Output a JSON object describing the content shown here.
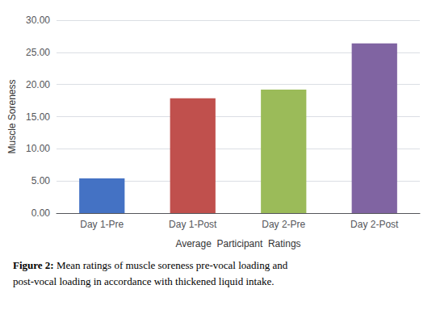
{
  "chart_data": {
    "type": "bar",
    "categories": [
      "Day 1-Pre",
      "Day 1-Post",
      "Day 2-Pre",
      "Day 2-Post"
    ],
    "values": [
      5.4,
      17.85,
      19.2,
      26.4
    ],
    "colors": [
      "#4472C4",
      "#C0504D",
      "#9BBB59",
      "#8064A2"
    ],
    "xlabel": "Average  Participant  Ratings",
    "ylabel": "Muscle Soreness",
    "ylim": [
      0,
      30
    ],
    "yticks": [
      {
        "value": 0,
        "label": "0.00"
      },
      {
        "value": 5,
        "label": "5.00"
      },
      {
        "value": 10,
        "label": "10.00"
      },
      {
        "value": 15,
        "label": "15.00"
      },
      {
        "value": 20,
        "label": "20.00"
      },
      {
        "value": 25,
        "label": "25.00"
      },
      {
        "value": 30,
        "label": "30.00"
      }
    ],
    "grid": true,
    "annotations": [
      "Figure 2:",
      "Mean ratings of muscle soreness pre-vocal loading and",
      "post-vocal loading in accordance with thickened liquid intake."
    ]
  }
}
